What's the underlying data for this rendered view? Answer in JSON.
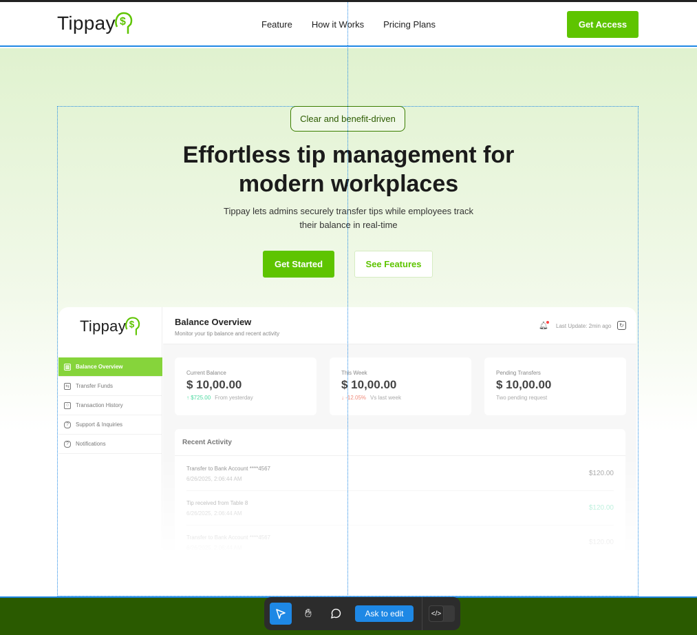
{
  "nav": {
    "logo": "Tippay",
    "links": [
      "Feature",
      "How it Works",
      "Pricing Plans"
    ],
    "cta": "Get Access"
  },
  "hero": {
    "badge": "Clear and benefit-driven",
    "title_line1": "Effortless tip management for",
    "title_line2": "modern workplaces",
    "subtitle_line1": "Tippay lets admins securely transfer tips while employees track",
    "subtitle_line2": "their balance in real-time",
    "primary": "Get Started",
    "secondary": "See Features"
  },
  "dashboard": {
    "logo": "Tippay",
    "sidebar": [
      {
        "label": "Balance Overview",
        "icon": "chart-icon"
      },
      {
        "label": "Transfer Funds",
        "icon": "transfer-icon"
      },
      {
        "label": "Transaction History",
        "icon": "history-icon"
      },
      {
        "label": "Support & Inquiries",
        "icon": "help-icon"
      },
      {
        "label": "Notifications",
        "icon": "help-icon"
      }
    ],
    "title": "Balance Overview",
    "subtitle": "Monitor your tip balance and recent activity",
    "last_update": "Last Update: 2min ago",
    "cards": [
      {
        "label": "Current Balance",
        "value": "$ 10,00.00",
        "change": "↑ $725.00",
        "note": "From yesterday",
        "change_color": "#4cd9a0"
      },
      {
        "label": "This Week",
        "value": "$ 10,00.00",
        "change": "↓ -12.05%",
        "note": "Vs last week",
        "change_color": "#f08a7a"
      },
      {
        "label": "Pending Transfers",
        "value": "$ 10,00.00",
        "change": "",
        "note": "Two pending request",
        "change_color": ""
      }
    ],
    "recent_title": "Recent Activity",
    "activity": [
      {
        "title": "Transfer to Bank Account ****4567",
        "date": "6/26/2025, 2:06:44 AM",
        "amount": "$120.00",
        "color": "#999999"
      },
      {
        "title": "Tip received from Table 8",
        "date": "6/26/2025, 2:06:44 AM",
        "amount": "$120.00",
        "color": "#7ee2bd"
      },
      {
        "title": "Transfer to Bank Account ****4567",
        "date": "6/26/2025, 2:06:44 AM",
        "amount": "$120.00",
        "color": "#999999"
      }
    ]
  },
  "toolbar": {
    "ask": "Ask to edit"
  },
  "colors": {
    "accent": "#5ec400",
    "selection": "#1e88e5",
    "toolbar": "#2c2c2c",
    "footer": "#2a5a00"
  }
}
